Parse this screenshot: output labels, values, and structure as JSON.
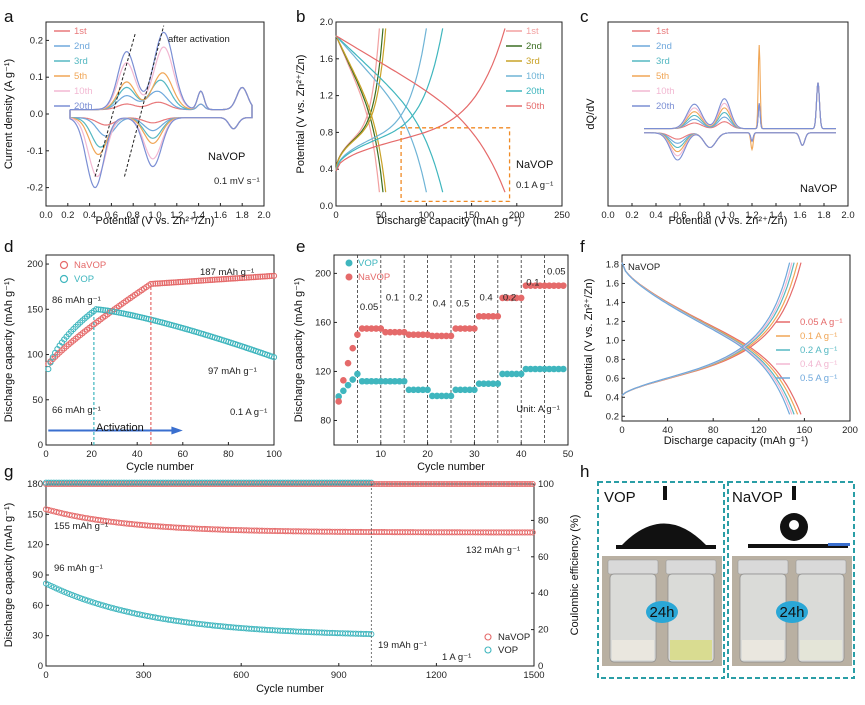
{
  "chart_data": [
    {
      "panel": "a",
      "type": "line",
      "xlabel": "Potential (V vs. Zn²⁺/Zn)",
      "ylabel": "Current density (A g⁻¹)",
      "xlim": [
        0.0,
        2.0
      ],
      "ylim": [
        -0.25,
        0.25
      ],
      "xticks": [
        "0.0",
        "0.2",
        "0.4",
        "0.6",
        "0.8",
        "1.0",
        "1.2",
        "1.4",
        "1.6",
        "1.8",
        "2.0"
      ],
      "yticks": [
        "-0.2",
        "-0.1",
        "0.0",
        "0.1",
        "0.2"
      ],
      "annotations": {
        "activation": "after activation",
        "material": "NaVOP",
        "rate": "0.1 mV s⁻¹"
      },
      "series": [
        {
          "name": "1st",
          "color": "#e8787a",
          "peaks": [
            [
              1.03,
              0.02
            ],
            [
              0.55,
              -0.02
            ]
          ]
        },
        {
          "name": "2nd",
          "color": "#6fa8dc",
          "peaks": [
            [
              1.02,
              0.05
            ],
            [
              0.55,
              -0.05
            ]
          ]
        },
        {
          "name": "3rd",
          "color": "#55b8c2",
          "peaks": [
            [
              1.05,
              0.08
            ],
            [
              0.5,
              -0.08
            ]
          ]
        },
        {
          "name": "5th",
          "color": "#f0a656",
          "peaks": [
            [
              1.07,
              0.1
            ],
            [
              0.48,
              -0.1
            ]
          ]
        },
        {
          "name": "10th",
          "color": "#f2b8d2",
          "peaks": [
            [
              1.08,
              0.17
            ],
            [
              0.47,
              -0.16
            ]
          ]
        },
        {
          "name": "20th",
          "color": "#7b8fd4",
          "peaks": [
            [
              1.08,
              0.21
            ],
            [
              0.45,
              -0.19
            ]
          ]
        }
      ]
    },
    {
      "panel": "b",
      "type": "line",
      "xlabel": "Discharge capacity (mAh g⁻¹)",
      "ylabel": "Potential (V vs. Zn²⁺/Zn)",
      "xlim": [
        0,
        250
      ],
      "ylim": [
        0.0,
        2.0
      ],
      "xticks": [
        "0",
        "50",
        "100",
        "150",
        "200",
        "250"
      ],
      "yticks": [
        "0.0",
        "0.4",
        "0.8",
        "1.2",
        "1.6",
        "2.0"
      ],
      "annotations": {
        "material": "NaVOP",
        "rate": "0.1 A g⁻¹"
      },
      "series": [
        {
          "name": "1st",
          "color": "#f2a0a0",
          "capacity": 48
        },
        {
          "name": "2nd",
          "color": "#3b6e22",
          "capacity": 52
        },
        {
          "name": "3rd",
          "color": "#c9a227",
          "capacity": 55
        },
        {
          "name": "10th",
          "color": "#6fb4d6",
          "capacity": 100
        },
        {
          "name": "20th",
          "color": "#3fb6be",
          "capacity": 118
        },
        {
          "name": "50th",
          "color": "#e56a6a",
          "capacity": 187
        }
      ]
    },
    {
      "panel": "c",
      "type": "line",
      "xlabel": "Potential (V vs. Zn²⁺/Zn)",
      "ylabel": "dQ/dV",
      "xlim": [
        0.0,
        2.0
      ],
      "xticks": [
        "0.0",
        "0.2",
        "0.4",
        "0.6",
        "0.8",
        "1.0",
        "1.2",
        "1.4",
        "1.6",
        "1.8",
        "2.0"
      ],
      "annotations": {
        "material": "NaVOP"
      },
      "series": [
        {
          "name": "1st",
          "color": "#e8787a"
        },
        {
          "name": "2nd",
          "color": "#6fa8dc"
        },
        {
          "name": "3rd",
          "color": "#55b8c2"
        },
        {
          "name": "5th",
          "color": "#f0a656"
        },
        {
          "name": "10th",
          "color": "#f2b8d2"
        },
        {
          "name": "20th",
          "color": "#7b8fd4"
        }
      ]
    },
    {
      "panel": "d",
      "type": "scatter",
      "xlabel": "Cycle number",
      "ylabel": "Discharge capacity (mAh g⁻¹)",
      "xlim": [
        0,
        100
      ],
      "ylim": [
        0,
        210
      ],
      "xticks": [
        "0",
        "20",
        "40",
        "60",
        "80",
        "100"
      ],
      "yticks": [
        "0",
        "50",
        "100",
        "150",
        "200"
      ],
      "annotations": {
        "top_navop": "187 mAh g⁻¹",
        "start_navop": "86 mAh g⁻¹",
        "end_vop": "97 mAh g⁻¹",
        "start_vop": "66 mAh g⁻¹",
        "rate": "0.1 A g⁻¹",
        "activation": "Activation"
      },
      "series": [
        {
          "name": "NaVOP",
          "color": "#e56a6a",
          "start": 86,
          "end": 187,
          "activation_end_cycle": 46
        },
        {
          "name": "VOP",
          "color": "#3fb6be",
          "start": 66,
          "peak": 150,
          "peak_cycle": 22,
          "end": 97
        }
      ]
    },
    {
      "panel": "e",
      "type": "scatter",
      "xlabel": "Cycle number",
      "ylabel": "Discharge capacity (mAh g⁻¹)",
      "xlim": [
        0,
        50
      ],
      "ylim": [
        60,
        215
      ],
      "xticks": [
        "10",
        "20",
        "30",
        "40",
        "50"
      ],
      "yticks": [
        "80",
        "120",
        "160",
        "200"
      ],
      "rates": [
        "0.05",
        "0.1",
        "0.2",
        "0.4",
        "0.5",
        "0.4",
        "0.2",
        "0.1",
        "0.05"
      ],
      "unit": "Unit: A g⁻¹",
      "series": [
        {
          "name": "VOP",
          "color": "#3fb6be",
          "levels": [
            118,
            112,
            112,
            105,
            100,
            105,
            110,
            118,
            122
          ]
        },
        {
          "name": "NaVOP",
          "color": "#e56a6a",
          "levels": [
            150,
            155,
            152,
            150,
            149,
            155,
            165,
            180,
            190
          ]
        }
      ]
    },
    {
      "panel": "f",
      "type": "line",
      "xlabel": "Discharge capacity (mAh g⁻¹)",
      "ylabel": "Potential (V vs. Zn²⁺/Zn)",
      "xlim": [
        0,
        200
      ],
      "ylim": [
        0.15,
        1.9
      ],
      "xticks": [
        "0",
        "40",
        "80",
        "120",
        "160",
        "200"
      ],
      "yticks": [
        "0.2",
        "0.4",
        "0.6",
        "0.8",
        "1.0",
        "1.2",
        "1.4",
        "1.6",
        "1.8"
      ],
      "annotations": {
        "material": "NaVOP"
      },
      "series": [
        {
          "name": "0.05 A g⁻¹",
          "color": "#e56a6a",
          "capacity": 157
        },
        {
          "name": "0.1 A g⁻¹",
          "color": "#f0a656",
          "capacity": 154
        },
        {
          "name": "0.2 A g⁻¹",
          "color": "#55b8c2",
          "capacity": 151
        },
        {
          "name": "0.4 A g⁻¹",
          "color": "#f2b8d2",
          "capacity": 149
        },
        {
          "name": "0.5 A g⁻¹",
          "color": "#6fa8dc",
          "capacity": 147
        }
      ]
    },
    {
      "panel": "g",
      "type": "scatter",
      "xlabel": "Cycle number",
      "ylabel": "Discharge capacity (mAh g⁻¹)",
      "y2label": "Coulombic efficiency (%)",
      "xlim": [
        0,
        1500
      ],
      "ylim": [
        0,
        180
      ],
      "y2lim": [
        0,
        100
      ],
      "xticks": [
        "0",
        "300",
        "600",
        "900",
        "1200",
        "1500"
      ],
      "yticks": [
        "0",
        "30",
        "60",
        "90",
        "120",
        "150",
        "180"
      ],
      "y2ticks": [
        "0",
        "20",
        "40",
        "60",
        "80",
        "100"
      ],
      "annotations": {
        "navop_start": "155 mAh g⁻¹",
        "vop_start": "96 mAh g⁻¹",
        "navop_end": "132 mAh g⁻¹",
        "vop_end": "19 mAh g⁻¹",
        "rate": "1 A g⁻¹"
      },
      "series": [
        {
          "name": "NaVOP",
          "color": "#e56a6a",
          "start": 155,
          "end": 132,
          "ce": 100
        },
        {
          "name": "VOP",
          "color": "#3fb6be",
          "start": 96,
          "end": 19,
          "ce": 100
        }
      ]
    }
  ],
  "panel_labels": [
    "a",
    "b",
    "c",
    "d",
    "e",
    "f",
    "g",
    "h"
  ],
  "legend_labels_a": [
    "1st",
    "2nd",
    "3rd",
    "5th",
    "10th",
    "20th"
  ],
  "legend_labels_b": [
    "1st",
    "2nd",
    "3rd",
    "10th",
    "20th",
    "50th"
  ],
  "legend_labels_c": [
    "1st",
    "2nd",
    "3rd",
    "5th",
    "10th",
    "20th"
  ],
  "legend_labels_d": [
    "NaVOP",
    "VOP"
  ],
  "legend_labels_e": [
    "VOP",
    "NaVOP"
  ],
  "legend_labels_f": [
    "0.05 A g⁻¹",
    "0.1 A g⁻¹",
    "0.2 A g⁻¹",
    "0.4 A g⁻¹",
    "0.5 A g⁻¹"
  ],
  "legend_labels_g": [
    "NaVOP",
    "VOP"
  ],
  "panel_h": {
    "left_title": "VOP",
    "right_title": "NaVOP",
    "time_label": "24h"
  }
}
